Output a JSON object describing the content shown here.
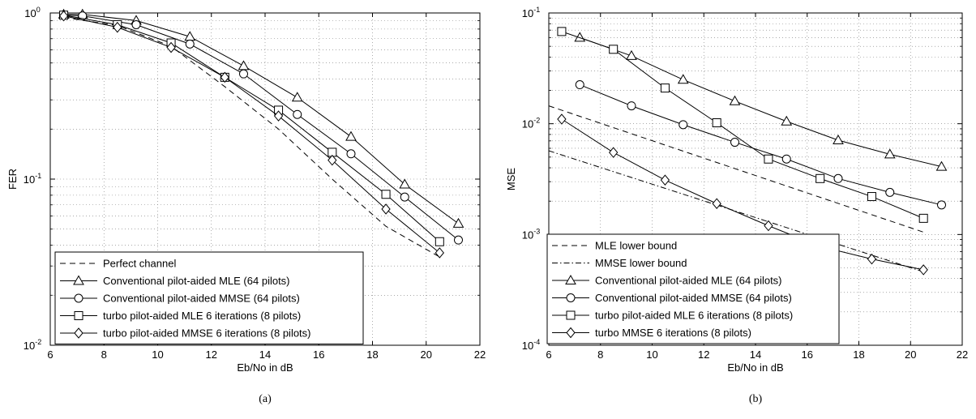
{
  "chart_data": [
    {
      "type": "line",
      "caption": "(a)",
      "xlabel": "Eb/No in dB",
      "ylabel": "FER",
      "xlim": [
        6,
        22
      ],
      "ylim": [
        0.01,
        1
      ],
      "yscale": "log",
      "grid": true,
      "legend_position": "bottom-left",
      "x_ticks": [
        "6",
        "8",
        "10",
        "12",
        "14",
        "16",
        "18",
        "20",
        "22"
      ],
      "y_ticks": [
        {
          "base": "10",
          "exp": "0"
        },
        {
          "base": "10",
          "exp": "-1"
        },
        {
          "base": "10",
          "exp": "-2"
        }
      ],
      "series": [
        {
          "name": "Perfect channel",
          "style": "dashed",
          "marker": "none",
          "x": [
            6.5,
            8.5,
            10.5,
            12.5,
            14.5,
            16.5,
            18.5,
            20.5
          ],
          "y": [
            0.94,
            0.84,
            0.63,
            0.36,
            0.2,
            0.1,
            0.052,
            0.034
          ]
        },
        {
          "name": "Conventional pilot-aided MLE (64 pilots)",
          "style": "solid",
          "marker": "triangle",
          "x": [
            6.5,
            7.2,
            9.2,
            11.2,
            13.2,
            15.2,
            17.2,
            19.2,
            21.2
          ],
          "y": [
            0.98,
            0.98,
            0.9,
            0.72,
            0.48,
            0.31,
            0.18,
            0.093,
            0.054
          ]
        },
        {
          "name": "Conventional pilot-aided MMSE (64 pilots)",
          "style": "solid",
          "marker": "circle",
          "x": [
            6.5,
            7.2,
            9.2,
            11.2,
            13.2,
            15.2,
            17.2,
            19.2,
            21.2
          ],
          "y": [
            0.97,
            0.96,
            0.85,
            0.65,
            0.43,
            0.245,
            0.142,
            0.078,
            0.043
          ]
        },
        {
          "name": "turbo pilot-aided MLE 6 iterations (8 pilots)",
          "style": "solid",
          "marker": "square",
          "x": [
            6.5,
            8.5,
            10.5,
            12.5,
            14.5,
            16.5,
            18.5,
            20.5
          ],
          "y": [
            0.97,
            0.85,
            0.66,
            0.41,
            0.26,
            0.145,
            0.081,
            0.042
          ]
        },
        {
          "name": "turbo pilot-aided MMSE 6 iterations (8 pilots)",
          "style": "solid",
          "marker": "diamond",
          "x": [
            6.5,
            8.5,
            10.5,
            12.5,
            14.5,
            16.5,
            18.5,
            20.5
          ],
          "y": [
            0.96,
            0.82,
            0.62,
            0.41,
            0.24,
            0.13,
            0.066,
            0.036
          ]
        }
      ]
    },
    {
      "type": "line",
      "caption": "(b)",
      "xlabel": "Eb/No in dB",
      "ylabel": "MSE",
      "xlim": [
        6,
        22
      ],
      "ylim": [
        0.0001,
        0.1
      ],
      "yscale": "log",
      "grid": true,
      "legend_position": "bottom-left",
      "x_ticks": [
        "6",
        "8",
        "10",
        "12",
        "14",
        "16",
        "18",
        "20",
        "22"
      ],
      "y_ticks": [
        {
          "base": "10",
          "exp": "-1"
        },
        {
          "base": "10",
          "exp": "-2"
        },
        {
          "base": "10",
          "exp": "-3"
        },
        {
          "base": "10",
          "exp": "-4"
        }
      ],
      "series": [
        {
          "name": "MLE lower bound",
          "style": "dashed",
          "marker": "none",
          "x": [
            6.0,
            20.5
          ],
          "y": [
            0.0145,
            0.00105
          ]
        },
        {
          "name": "MMSE lower bound",
          "style": "dashdot",
          "marker": "none",
          "x": [
            6.0,
            20.5
          ],
          "y": [
            0.0057,
            0.00046
          ]
        },
        {
          "name": "Conventional pilot-aided MLE (64 pilots)",
          "style": "solid",
          "marker": "triangle",
          "x": [
            7.2,
            9.2,
            11.2,
            13.2,
            15.2,
            17.2,
            19.2,
            21.2
          ],
          "y": [
            0.06,
            0.041,
            0.025,
            0.016,
            0.0105,
            0.0071,
            0.0053,
            0.0041
          ]
        },
        {
          "name": "Conventional pilot-aided MMSE (64 pilots)",
          "style": "solid",
          "marker": "circle",
          "x": [
            7.2,
            9.2,
            11.2,
            13.2,
            15.2,
            17.2,
            19.2,
            21.2
          ],
          "y": [
            0.0225,
            0.0145,
            0.0098,
            0.0068,
            0.0048,
            0.0032,
            0.0024,
            0.00185
          ]
        },
        {
          "name": "turbo pilot-aided MLE 6 iterations (8 pilots)",
          "style": "solid",
          "marker": "square",
          "x": [
            6.5,
            8.5,
            10.5,
            12.5,
            14.5,
            16.5,
            18.5,
            20.5
          ],
          "y": [
            0.068,
            0.047,
            0.021,
            0.0102,
            0.0048,
            0.0032,
            0.0022,
            0.0014
          ]
        },
        {
          "name": "turbo MMSE 6 iterations (8 pilots)",
          "style": "solid",
          "marker": "diamond",
          "x": [
            6.5,
            8.5,
            10.5,
            12.5,
            14.5,
            16.5,
            18.5,
            20.5
          ],
          "y": [
            0.011,
            0.0055,
            0.0031,
            0.0019,
            0.0012,
            0.00078,
            0.0006,
            0.00048
          ]
        }
      ]
    }
  ]
}
